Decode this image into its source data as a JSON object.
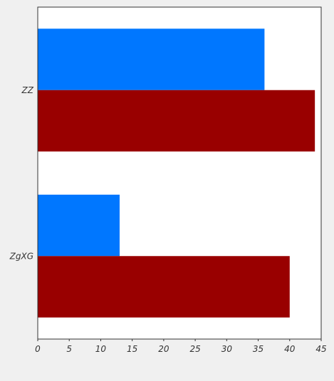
{
  "chart_data": {
    "type": "bar",
    "orientation": "horizontal",
    "categories": [
      "ZZ",
      "ZgXG"
    ],
    "series": [
      {
        "color": "#0077ff",
        "values": [
          36,
          13
        ]
      },
      {
        "color": "#990000",
        "values": [
          44,
          40
        ]
      }
    ],
    "xlim": [
      0,
      45
    ],
    "x_ticks": [
      0,
      5,
      10,
      15,
      20,
      25,
      30,
      35,
      40,
      45
    ],
    "grid": false,
    "legend": "none",
    "colors": {
      "plot_background": "#ffffff",
      "page_background": "#f0f0f0",
      "axis": "#333333"
    }
  }
}
